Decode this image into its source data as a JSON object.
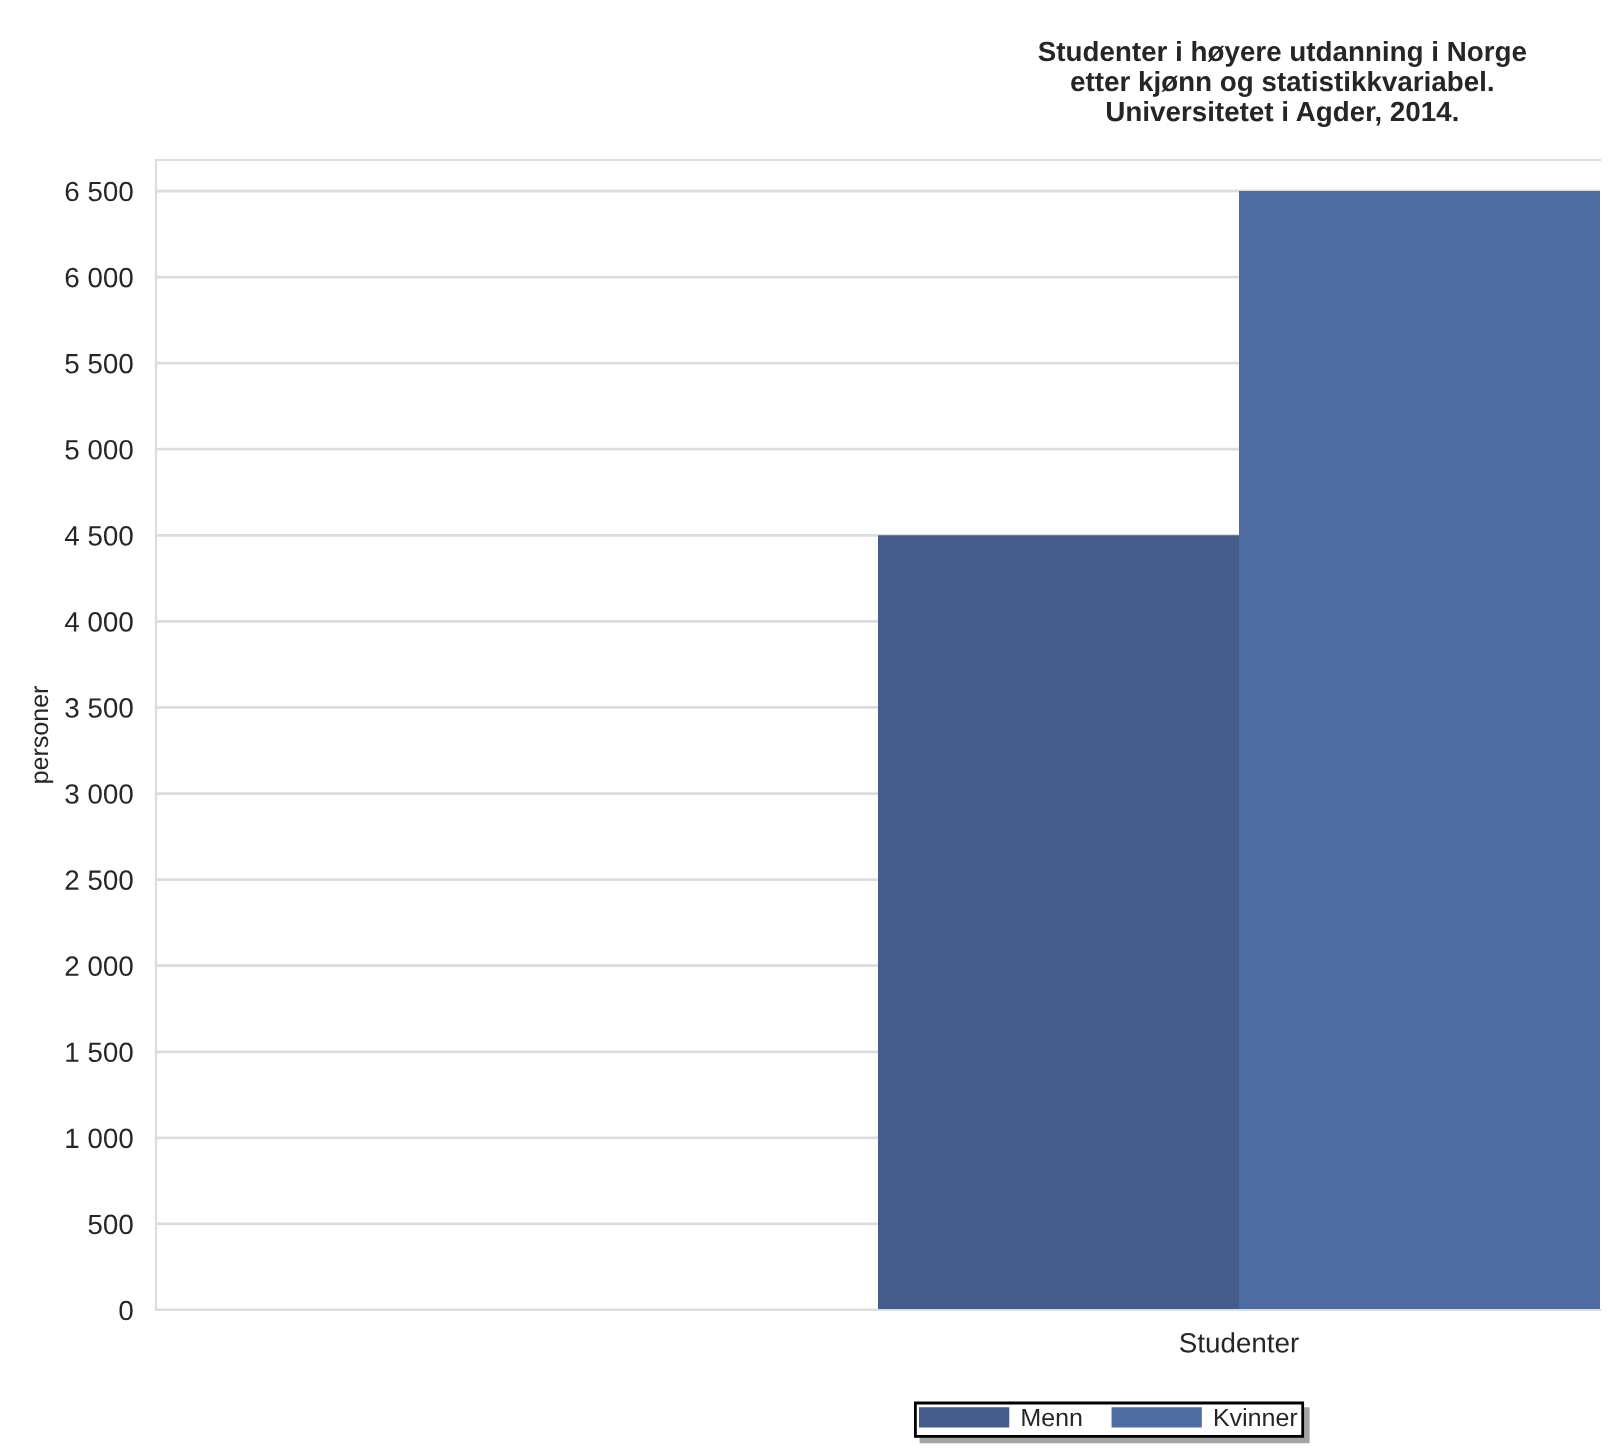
{
  "chart_data": {
    "type": "bar",
    "title": "Studenter i høyere utdanning i Norge\netter kjønn og statistikkvariabel.\nUniversitetet i Agder, 2014.",
    "ylabel": "personer",
    "categories": [
      null,
      "Studenter"
    ],
    "series": [
      {
        "name": "Menn",
        "color": "#435c8a",
        "values": [
          null,
          4500
        ]
      },
      {
        "name": "Kvinner",
        "color": "#4e6ca1",
        "values": [
          null,
          6500
        ]
      }
    ],
    "ylim": [
      0,
      6680
    ],
    "yticks": [
      0,
      500,
      {
        "value": 1000,
        "label": "1 000"
      },
      {
        "value": 1500,
        "label": "1 500"
      },
      {
        "value": 2000,
        "label": "2 000"
      },
      {
        "value": 2500,
        "label": "2 500"
      },
      {
        "value": 3000,
        "label": "3 000"
      },
      {
        "value": 3500,
        "label": "3 500"
      },
      {
        "value": 4000,
        "label": "4 000"
      },
      {
        "value": 4500,
        "label": "4 500"
      },
      {
        "value": 5000,
        "label": "5 000"
      },
      {
        "value": 5500,
        "label": "5 500"
      },
      {
        "value": 6000,
        "label": "6 000"
      },
      {
        "value": 6500,
        "label": "6 500"
      }
    ],
    "grid": "y",
    "legend": "bottom"
  }
}
